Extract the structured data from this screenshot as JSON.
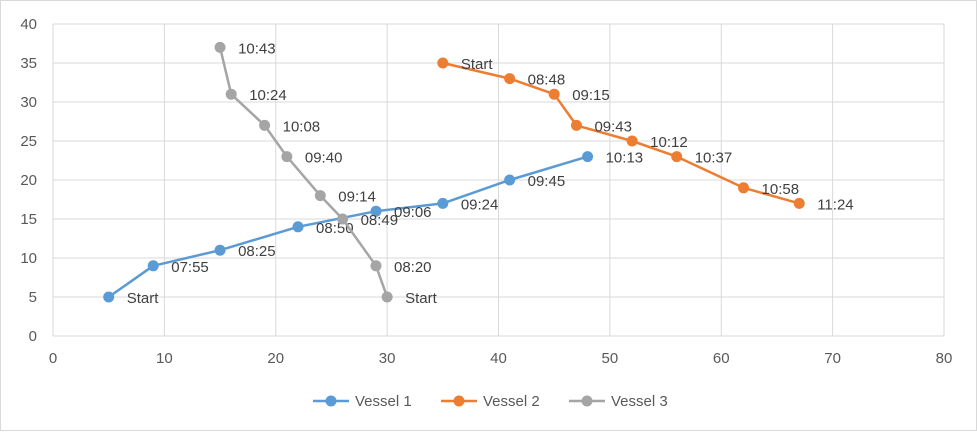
{
  "chart_data": {
    "type": "scatter",
    "title": "",
    "xlabel": "",
    "ylabel": "",
    "xlim": [
      0,
      80
    ],
    "ylim": [
      0,
      40
    ],
    "xticks": [
      0,
      10,
      20,
      30,
      40,
      50,
      60,
      70,
      80
    ],
    "yticks": [
      0,
      5,
      10,
      15,
      20,
      25,
      30,
      35,
      40
    ],
    "grid": true,
    "legend_position": "bottom",
    "series": [
      {
        "name": "Vessel 1",
        "color": "#5b9bd5",
        "points": [
          {
            "x": 5,
            "y": 5,
            "label": "Start"
          },
          {
            "x": 9,
            "y": 9,
            "label": "07:55"
          },
          {
            "x": 15,
            "y": 11,
            "label": "08:25"
          },
          {
            "x": 22,
            "y": 14,
            "label": "08:50"
          },
          {
            "x": 29,
            "y": 16,
            "label": "09:06"
          },
          {
            "x": 35,
            "y": 17,
            "label": "09:24"
          },
          {
            "x": 41,
            "y": 20,
            "label": "09:45"
          },
          {
            "x": 48,
            "y": 23,
            "label": "10:13"
          }
        ]
      },
      {
        "name": "Vessel 2",
        "color": "#ed7d31",
        "points": [
          {
            "x": 35,
            "y": 35,
            "label": "Start"
          },
          {
            "x": 41,
            "y": 33,
            "label": "08:48"
          },
          {
            "x": 45,
            "y": 31,
            "label": "09:15"
          },
          {
            "x": 47,
            "y": 27,
            "label": "09:43"
          },
          {
            "x": 52,
            "y": 25,
            "label": "10:12"
          },
          {
            "x": 56,
            "y": 23,
            "label": "10:37"
          },
          {
            "x": 62,
            "y": 19,
            "label": "10:58"
          },
          {
            "x": 67,
            "y": 17,
            "label": "11:24"
          }
        ]
      },
      {
        "name": "Vessel 3",
        "color": "#a5a5a5",
        "points": [
          {
            "x": 30,
            "y": 5,
            "label": "Start"
          },
          {
            "x": 29,
            "y": 9,
            "label": "08:20"
          },
          {
            "x": 26,
            "y": 15,
            "label": "08:49"
          },
          {
            "x": 24,
            "y": 18,
            "label": "09:14"
          },
          {
            "x": 21,
            "y": 23,
            "label": "09:40"
          },
          {
            "x": 19,
            "y": 27,
            "label": "10:08"
          },
          {
            "x": 16,
            "y": 31,
            "label": "10:24"
          },
          {
            "x": 15,
            "y": 37,
            "label": "10:43"
          }
        ]
      }
    ]
  }
}
